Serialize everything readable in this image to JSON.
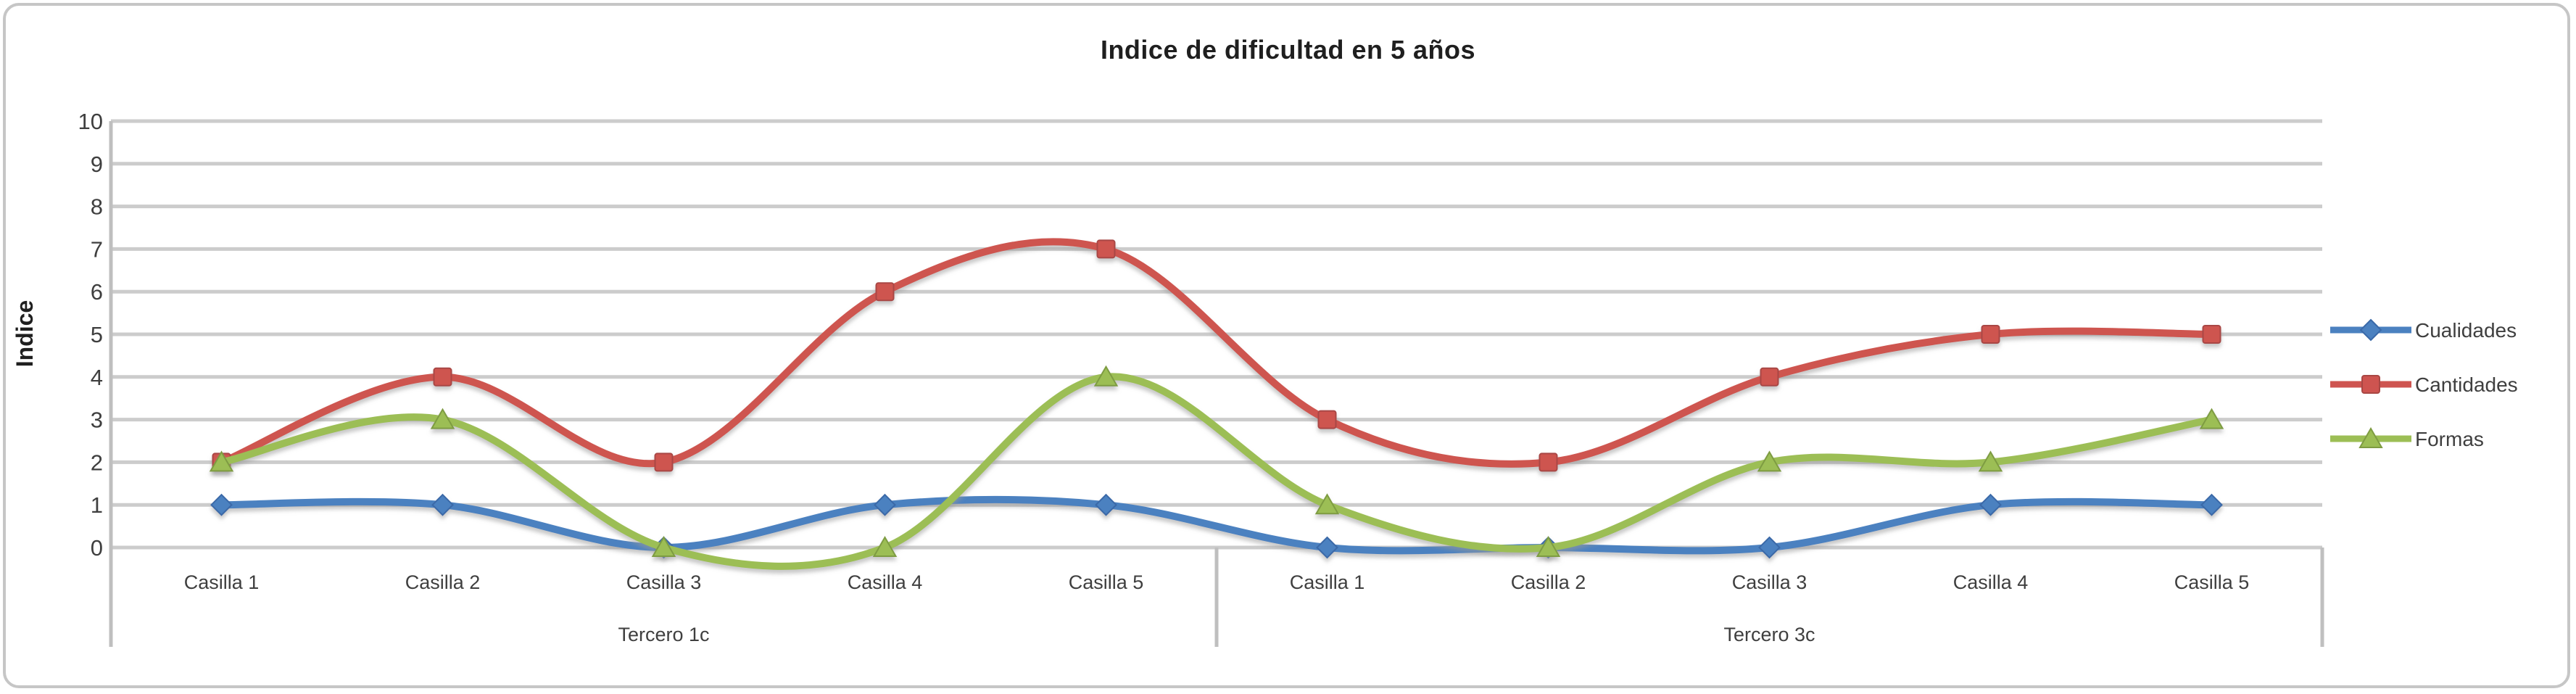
{
  "chart_data": {
    "type": "line",
    "title": "Indice de dificultad en 5 años",
    "ylabel": "Indice",
    "ylim": [
      0,
      10
    ],
    "yticks": [
      0,
      1,
      2,
      3,
      4,
      5,
      6,
      7,
      8,
      9,
      10
    ],
    "grid": true,
    "line_style": "smooth",
    "legend_position": "right",
    "grid_color": "#cccccc",
    "axis_color": "#bfbfbf",
    "tick_text_color": "#3f3f3f",
    "groups": [
      {
        "label": "Tercero 1c",
        "categories": [
          "Casilla 1",
          "Casilla 2",
          "Casilla 3",
          "Casilla 4",
          "Casilla 5"
        ]
      },
      {
        "label": "Tercero 3c",
        "categories": [
          "Casilla 1",
          "Casilla 2",
          "Casilla 3",
          "Casilla 4",
          "Casilla 5"
        ]
      }
    ],
    "series": [
      {
        "name": "Cualidades",
        "color": "#4b81c0",
        "edge_color": "#3a69a8",
        "marker": "diamond",
        "values": [
          1,
          1,
          0,
          1,
          1,
          0,
          0,
          0,
          1,
          1
        ]
      },
      {
        "name": "Cantidades",
        "color": "#ce5450",
        "edge_color": "#a94744",
        "marker": "square",
        "values": [
          2,
          4,
          2,
          6,
          7,
          3,
          2,
          4,
          5,
          5
        ]
      },
      {
        "name": "Formas",
        "color": "#9cbe55",
        "edge_color": "#7e9c42",
        "marker": "triangle",
        "values": [
          2,
          3,
          0,
          0,
          4,
          1,
          0,
          2,
          2,
          3
        ]
      }
    ]
  }
}
